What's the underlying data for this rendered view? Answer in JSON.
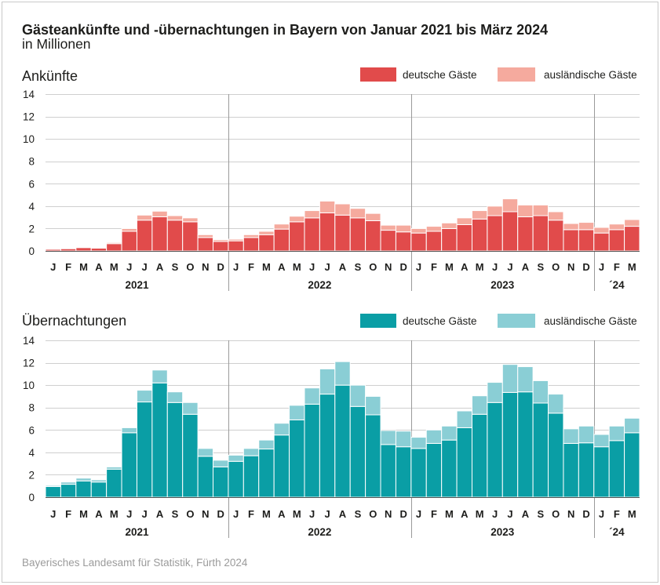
{
  "title": "Gästeankünfte und -übernachtungen in Bayern von Januar 2021 bis März 2024",
  "subtitle": "in Millionen",
  "source": "Bayerisches Landesamt für Statistik, Fürth 2024",
  "chart_data": [
    {
      "type": "bar",
      "stacked": true,
      "title": "Ankünfte",
      "ylim": [
        0,
        14
      ],
      "yticks": [
        0,
        2,
        4,
        6,
        8,
        10,
        12,
        14
      ],
      "grid": true,
      "legend": "top-right",
      "groups": [
        {
          "label": "2021",
          "categories": [
            "J",
            "F",
            "M",
            "A",
            "M",
            "J",
            "J",
            "A",
            "S",
            "O",
            "N",
            "D"
          ]
        },
        {
          "label": "2022",
          "categories": [
            "J",
            "F",
            "M",
            "A",
            "M",
            "J",
            "J",
            "A",
            "S",
            "O",
            "N",
            "D"
          ]
        },
        {
          "label": "2023",
          "categories": [
            "J",
            "F",
            "M",
            "A",
            "M",
            "J",
            "J",
            "A",
            "S",
            "O",
            "N",
            "D"
          ]
        },
        {
          "label": "´24",
          "categories": [
            "J",
            "F",
            "M"
          ]
        }
      ],
      "series": [
        {
          "name": "deutsche Gäste",
          "color": "#e14b4b",
          "values": [
            0.15,
            0.2,
            0.3,
            0.25,
            0.65,
            1.75,
            2.75,
            3.05,
            2.75,
            2.6,
            1.2,
            0.85,
            0.9,
            1.2,
            1.45,
            1.95,
            2.6,
            2.95,
            3.4,
            3.2,
            2.95,
            2.7,
            1.85,
            1.7,
            1.6,
            1.75,
            2.0,
            2.35,
            2.85,
            3.15,
            3.5,
            3.05,
            3.15,
            2.75,
            1.9,
            1.9,
            1.6,
            1.9,
            2.2
          ]
        },
        {
          "name": "ausländische Gäste",
          "color": "#f5aa9e",
          "values": [
            0.05,
            0.05,
            0.05,
            0.05,
            0.1,
            0.25,
            0.45,
            0.5,
            0.4,
            0.35,
            0.25,
            0.15,
            0.15,
            0.25,
            0.3,
            0.45,
            0.5,
            0.65,
            1.05,
            1.0,
            0.85,
            0.65,
            0.45,
            0.6,
            0.4,
            0.45,
            0.5,
            0.6,
            0.75,
            0.85,
            1.15,
            1.05,
            0.95,
            0.75,
            0.55,
            0.65,
            0.5,
            0.5,
            0.6
          ]
        }
      ]
    },
    {
      "type": "bar",
      "stacked": true,
      "title": "Übernachtungen",
      "ylim": [
        0,
        14
      ],
      "yticks": [
        0,
        2,
        4,
        6,
        8,
        10,
        12,
        14
      ],
      "grid": true,
      "legend": "top-right",
      "groups": [
        {
          "label": "2021",
          "categories": [
            "J",
            "F",
            "M",
            "A",
            "M",
            "J",
            "J",
            "A",
            "S",
            "O",
            "N",
            "D"
          ]
        },
        {
          "label": "2022",
          "categories": [
            "J",
            "F",
            "M",
            "A",
            "M",
            "J",
            "J",
            "A",
            "S",
            "O",
            "N",
            "D"
          ]
        },
        {
          "label": "2023",
          "categories": [
            "J",
            "F",
            "M",
            "A",
            "M",
            "J",
            "J",
            "A",
            "S",
            "O",
            "N",
            "D"
          ]
        },
        {
          "label": "´24",
          "categories": [
            "J",
            "F",
            "M"
          ]
        }
      ],
      "series": [
        {
          "name": "deutsche Gäste",
          "color": "#0a9ea5",
          "values": [
            0.95,
            1.15,
            1.45,
            1.35,
            2.5,
            5.75,
            8.5,
            10.2,
            8.45,
            7.4,
            3.65,
            2.7,
            3.2,
            3.7,
            4.3,
            5.55,
            6.9,
            8.3,
            9.2,
            10.0,
            8.1,
            7.35,
            4.7,
            4.5,
            4.35,
            4.8,
            5.1,
            6.2,
            7.4,
            8.45,
            9.35,
            9.4,
            8.4,
            7.5,
            4.8,
            4.85,
            4.5,
            5.05,
            5.75
          ]
        },
        {
          "name": "ausländische Gäste",
          "color": "#8aced5",
          "values": [
            0.1,
            0.2,
            0.25,
            0.2,
            0.2,
            0.45,
            1.05,
            1.15,
            0.95,
            1.05,
            0.7,
            0.6,
            0.55,
            0.65,
            0.8,
            1.05,
            1.3,
            1.45,
            2.25,
            2.1,
            1.9,
            1.65,
            1.25,
            1.4,
            1.0,
            1.2,
            1.25,
            1.5,
            1.65,
            1.8,
            2.5,
            2.25,
            2.0,
            1.7,
            1.3,
            1.5,
            1.1,
            1.3,
            1.3
          ]
        }
      ]
    }
  ]
}
